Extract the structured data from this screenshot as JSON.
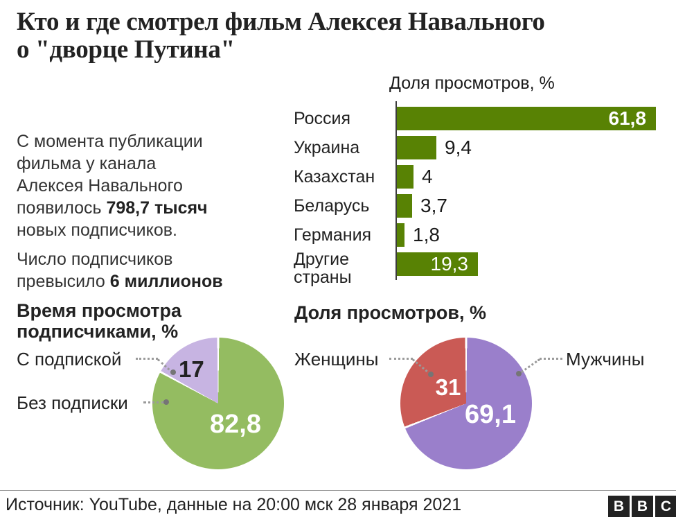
{
  "header": {
    "title": "Кто и где смотрел фильм Алексея Навального\nо \"дворце Путина\""
  },
  "intro": {
    "p1_before": "С момента публикации\nфильма у канала\nАлексея Навального\nпоявилось ",
    "p1_bold": "798,7 тысяч",
    "p1_after": "\nновых подписчиков.",
    "p2_before": "Число подписчиков\nпревысило ",
    "p2_bold": "6 миллионов"
  },
  "colors": {
    "bar_green": "#588204",
    "pie_green": "#94bc61",
    "pie_light_purple": "#c7b4e2",
    "pie_purple": "#9a7fcb",
    "pie_red": "#ca5a55",
    "text_dark": "#222222",
    "value_white": "#ffffff"
  },
  "chart_data": [
    {
      "id": "views-by-country",
      "type": "bar",
      "orientation": "horizontal",
      "title": "Доля просмотров, %",
      "categories": [
        "Россия",
        "Украина",
        "Казахстан",
        "Беларусь",
        "Германия",
        "Другие\nстраны"
      ],
      "values": [
        61.8,
        9.4,
        4,
        3.7,
        1.8,
        19.3
      ],
      "value_labels": [
        "61,8",
        "9,4",
        "4",
        "3,7",
        "1,8",
        "19,3"
      ],
      "label_inside": [
        true,
        false,
        false,
        false,
        false,
        true
      ],
      "value_bold": [
        true,
        false,
        false,
        false,
        false,
        false
      ],
      "bar_color": "#588204",
      "xlim": [
        0,
        61.8
      ],
      "grid": false
    },
    {
      "id": "watch-time-subscribers",
      "type": "pie",
      "title": "Время просмотра\nподписчиками, %",
      "slices": [
        {
          "label": "Без подписки",
          "value": 82.8,
          "value_label": "82,8",
          "color": "#94bc61",
          "text_color": "#ffffff"
        },
        {
          "label": "С подпиской",
          "value": 17,
          "value_label": "17",
          "color": "#c7b4e2",
          "text_color": "#222222"
        }
      ],
      "start_angle_deg": 0,
      "direction": "clockwise"
    },
    {
      "id": "views-by-gender",
      "type": "pie",
      "title": "Доля просмотров, %",
      "slices": [
        {
          "label": "Мужчины",
          "value": 69.1,
          "value_label": "69,1",
          "color": "#9a7fcb",
          "text_color": "#ffffff"
        },
        {
          "label": "Женщины",
          "value": 31,
          "value_label": "31",
          "color": "#ca5a55",
          "text_color": "#ffffff"
        }
      ],
      "start_angle_deg": 0,
      "direction": "clockwise"
    }
  ],
  "footer": {
    "source": "Источник: YouTube, данные на 20:00 мск 28 января 2021",
    "logo_letters": [
      "B",
      "B",
      "C"
    ]
  }
}
